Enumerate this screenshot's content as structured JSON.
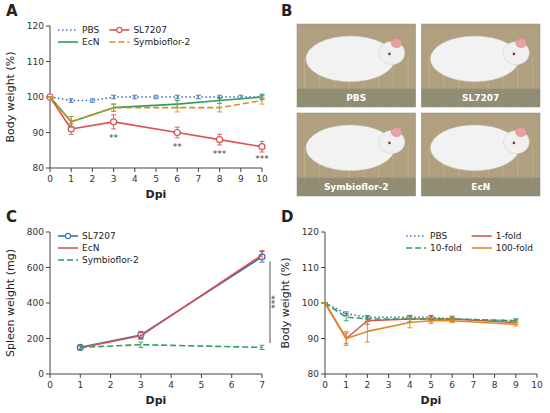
{
  "chart_data": [
    {
      "type": "line",
      "title": "A",
      "xlabel": "Dpi",
      "ylabel": "Body weight (%)",
      "xlim": [
        0,
        10
      ],
      "ylim": [
        80,
        120
      ],
      "xticks": [
        0,
        1,
        2,
        3,
        4,
        5,
        6,
        7,
        8,
        9,
        10
      ],
      "yticks": [
        80,
        90,
        100,
        110,
        120
      ],
      "grid": false,
      "legend": "upper left",
      "series": [
        {
          "name": "PBS",
          "line_style": "dotted",
          "x": [
            0,
            1,
            2,
            3,
            4,
            5,
            6,
            7,
            8,
            9,
            10
          ],
          "values": [
            100,
            99,
            99,
            100,
            100,
            100,
            100,
            100,
            100,
            100,
            100
          ],
          "errors": [
            0,
            0.5,
            0.5,
            0.5,
            0.5,
            0.5,
            0.5,
            0.5,
            0.5,
            0.5,
            0.5
          ]
        },
        {
          "name": "SL7207",
          "line_style": "solid",
          "marker": "circle",
          "x": [
            0,
            1,
            3,
            6,
            8,
            10
          ],
          "values": [
            100,
            91,
            93,
            90,
            88,
            86
          ],
          "errors": [
            0,
            1.5,
            2,
            1.5,
            1.5,
            1.5
          ]
        },
        {
          "name": "EcN",
          "line_style": "solid",
          "x": [
            0,
            1,
            3,
            6,
            8,
            10
          ],
          "values": [
            100,
            93,
            97,
            98,
            99,
            100
          ],
          "errors": [
            0,
            1.5,
            1,
            1,
            0.8,
            0.8
          ]
        },
        {
          "name": "Symbioflor-2",
          "line_style": "dashed",
          "x": [
            0,
            1,
            3,
            6,
            8,
            10
          ],
          "values": [
            100,
            93,
            97,
            97,
            97,
            99
          ],
          "errors": [
            0,
            1.5,
            1,
            1.2,
            1.2,
            1
          ]
        }
      ],
      "annotations": [
        {
          "x": 3,
          "y": 89.5,
          "text": "**"
        },
        {
          "x": 6,
          "y": 87,
          "text": "**"
        },
        {
          "x": 8,
          "y": 85,
          "text": "***"
        },
        {
          "x": 10,
          "y": 83.5,
          "text": "***"
        }
      ]
    },
    {
      "type": "image",
      "title": "B",
      "categories": [
        "PBS",
        "SL7207",
        "Symbioflor-2",
        "EcN"
      ]
    },
    {
      "type": "line",
      "title": "C",
      "xlabel": "Dpi",
      "ylabel": "Spleen weight (mg)",
      "xlim": [
        0,
        7
      ],
      "ylim": [
        0,
        800
      ],
      "xticks": [
        0,
        1,
        2,
        3,
        4,
        5,
        6,
        7
      ],
      "yticks": [
        0,
        200,
        400,
        600,
        800
      ],
      "grid": false,
      "legend": "upper left",
      "series": [
        {
          "name": "SL7207",
          "line_style": "solid",
          "marker": "circle",
          "x": [
            1,
            3,
            7
          ],
          "values": [
            150,
            220,
            660
          ],
          "errors": [
            10,
            20,
            30
          ]
        },
        {
          "name": "EcN",
          "line_style": "solid",
          "x": [
            1,
            3,
            7
          ],
          "values": [
            148,
            215,
            670
          ],
          "errors": [
            10,
            20,
            25
          ]
        },
        {
          "name": "Symbioflor-2",
          "line_style": "dashed",
          "x": [
            1,
            3,
            7
          ],
          "values": [
            150,
            165,
            150
          ],
          "errors": [
            10,
            15,
            12
          ]
        }
      ],
      "annotations": [
        {
          "x": 7,
          "y_bottom": 175,
          "y_top": 635,
          "text": "***"
        }
      ]
    },
    {
      "type": "line",
      "title": "D",
      "xlabel": "Dpi",
      "ylabel": "Body weight (%)",
      "xlim": [
        0,
        10
      ],
      "ylim": [
        80,
        120
      ],
      "xticks": [
        0,
        1,
        2,
        3,
        4,
        5,
        6,
        7,
        8,
        9,
        10
      ],
      "yticks": [
        80,
        90,
        100,
        110,
        120
      ],
      "grid": false,
      "legend": "upper right",
      "series": [
        {
          "name": "PBS",
          "line_style": "dotted",
          "x": [
            0,
            1,
            2,
            4,
            5,
            6,
            9
          ],
          "values": [
            100,
            97,
            96,
            96,
            96,
            95.5,
            95
          ],
          "errors": [
            0,
            0.5,
            0.5,
            0.5,
            0.5,
            0.5,
            0.5
          ]
        },
        {
          "name": "1-fold",
          "line_style": "solid",
          "x": [
            0,
            1,
            2,
            4,
            5,
            6,
            9
          ],
          "values": [
            100,
            90,
            95,
            95.5,
            95.5,
            95.5,
            94.5
          ],
          "errors": [
            0,
            1.5,
            1,
            1,
            0.8,
            0.8,
            0.5
          ]
        },
        {
          "name": "10-fold",
          "line_style": "dashed",
          "x": [
            0,
            1,
            2,
            4,
            5,
            6,
            9
          ],
          "values": [
            100,
            96,
            95.5,
            95.5,
            95.5,
            95.5,
            95
          ],
          "errors": [
            0,
            1,
            0.8,
            0.8,
            0.5,
            0.5,
            0.5
          ]
        },
        {
          "name": "100-fold",
          "line_style": "solid",
          "x": [
            0,
            1,
            2,
            4,
            5,
            6,
            9
          ],
          "values": [
            100,
            90,
            92,
            94.5,
            95,
            95,
            94
          ],
          "errors": [
            0,
            2,
            3,
            1.5,
            0.8,
            0.5,
            0.5
          ]
        }
      ]
    }
  ]
}
